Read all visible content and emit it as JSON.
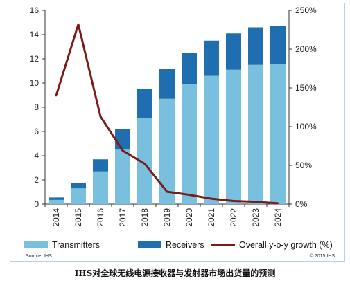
{
  "chart_data": {
    "type": "bar",
    "categories": [
      "2014",
      "2015",
      "2016",
      "2017",
      "2018",
      "2019",
      "2020",
      "2021",
      "2022",
      "2023",
      "2024"
    ],
    "series": [
      {
        "name": "Transmitters",
        "values": [
          0.35,
          1.3,
          2.7,
          4.5,
          7.1,
          8.7,
          9.9,
          10.6,
          11.1,
          11.5,
          11.6
        ]
      },
      {
        "name": "Receivers",
        "values": [
          0.2,
          0.45,
          1.0,
          1.7,
          2.4,
          2.5,
          2.6,
          2.9,
          3.0,
          3.1,
          3.1
        ]
      }
    ],
    "line_series": {
      "name": "Overall y-o-y growth (%)",
      "values": [
        140,
        232,
        113,
        69,
        52,
        16,
        12,
        7,
        4,
        3,
        1
      ]
    },
    "stacked": true,
    "left_axis": {
      "ylim": [
        0,
        16
      ],
      "ticks": [
        "0",
        "2",
        "4",
        "6",
        "8",
        "10",
        "12",
        "14",
        "16"
      ]
    },
    "right_axis": {
      "ylim": [
        0,
        250
      ],
      "ticks": [
        "0%",
        "50%",
        "100%",
        "150%",
        "200%",
        "250%"
      ]
    },
    "grid": false,
    "legend_position": "bottom",
    "colors": {
      "Transmitters": "#79c0de",
      "Receivers": "#1f6eb0",
      "Overall y-o-y growth (%)": "#7a1a1a"
    }
  },
  "legend": {
    "transmitters": "Transmitters",
    "receivers": "Receivers",
    "growth": "Overall y-o-y growth (%)"
  },
  "source": "Source: IHS",
  "copyright": "© 2015 IHS",
  "caption": "IHS对全球无线电源接收器与发射器市场出货量的预测"
}
